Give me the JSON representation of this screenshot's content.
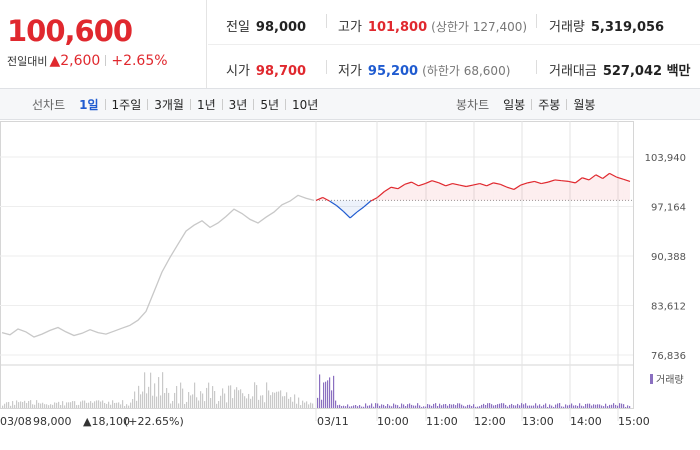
{
  "header": {
    "price": "100,600",
    "change_label": "전일대비",
    "change_value": "▲2,600",
    "change_percent": "+2.65%",
    "prev_close": {
      "label": "전일",
      "value": "98,000"
    },
    "high": {
      "label": "고가",
      "value": "101,800",
      "extra": "(상한가 127,400)"
    },
    "volume": {
      "label": "거래량",
      "value": "5,319,056"
    },
    "open": {
      "label": "시가",
      "value": "98,700"
    },
    "low": {
      "label": "저가",
      "value": "95,200",
      "extra": "(하한가 68,600)"
    },
    "amount": {
      "label": "거래대금",
      "value": "527,042 백만"
    }
  },
  "tabs": {
    "line_title": "선차트",
    "line_tabs": [
      {
        "label": "1일",
        "active": true
      },
      {
        "label": "1주일",
        "active": false
      },
      {
        "label": "3개월",
        "active": false
      },
      {
        "label": "1년",
        "active": false
      },
      {
        "label": "3년",
        "active": false
      },
      {
        "label": "5년",
        "active": false
      },
      {
        "label": "10년",
        "active": false
      }
    ],
    "candle_title": "봉차트",
    "candle_tabs": [
      {
        "label": "일봉"
      },
      {
        "label": "주봉"
      },
      {
        "label": "월봉"
      }
    ]
  },
  "colors": {
    "up": "#e0282e",
    "down": "#1f5bd0",
    "history_line": "#c8c8c8",
    "volume_history": "#c9c9c9",
    "volume_today": "#8a6fc0"
  },
  "chart_data": {
    "type": "line",
    "yticks": [
      "103,940",
      "97,164",
      "90,388",
      "83,612",
      "76,836"
    ],
    "ylim": [
      76836,
      103940
    ],
    "reference_price": 98000,
    "history_label": "03/08",
    "history_summary": {
      "price": "98,000",
      "change": "▲18,100",
      "percent": "(+22.65%)"
    },
    "today_label": "03/11",
    "time_labels": [
      "10:00",
      "11:00",
      "12:00",
      "13:00",
      "14:00",
      "15:00"
    ],
    "volume_legend": "거래량",
    "history_series": [
      79900,
      79600,
      80400,
      80000,
      79300,
      79700,
      80200,
      80600,
      80000,
      79500,
      79800,
      80300,
      79900,
      79700,
      80100,
      80500,
      80900,
      81600,
      82800,
      85500,
      88200,
      90200,
      92000,
      93800,
      94600,
      95200,
      94300,
      94900,
      95800,
      96800,
      96200,
      95400,
      94900,
      95700,
      96400,
      97400,
      97900,
      98700,
      98300,
      98000
    ],
    "today_series": [
      98000,
      98400,
      97900,
      97300,
      96500,
      95600,
      96400,
      97100,
      97900,
      98400,
      99200,
      99800,
      99600,
      100200,
      100500,
      100000,
      100300,
      100700,
      100400,
      100000,
      100300,
      100100,
      99900,
      100100,
      100300,
      100000,
      100400,
      100200,
      99800,
      99500,
      100100,
      100400,
      100600,
      100300,
      100500,
      100800,
      100700,
      100600,
      100400,
      101100,
      100800,
      101500,
      101000,
      101700,
      101200,
      100900,
      100600
    ]
  }
}
